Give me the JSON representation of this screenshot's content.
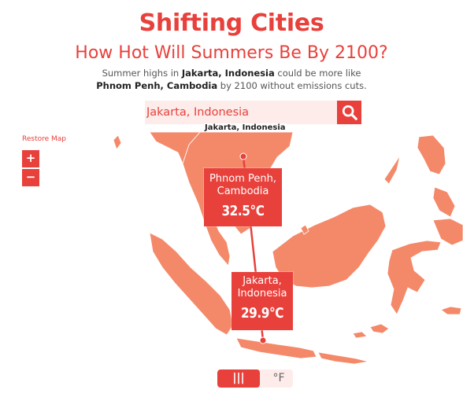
{
  "title": "Shifting Cities",
  "subtitle": "How Hot Will Summers Be By 2100?",
  "description": {
    "part1": "Summer highs in ",
    "city_a": "Jakarta, Indonesia",
    "part2": " could be more like",
    "city_b": "Phnom Penh, Cambodia",
    "part3": " by 2100 without emissions cuts."
  },
  "search": {
    "value": "Jakarta, Indonesia",
    "suggestion": "Jakarta, Indonesia",
    "button_icon": "search-icon"
  },
  "map_controls": {
    "restore_label": "Restore Map",
    "zoom_in_label": "+",
    "zoom_out_label": "−"
  },
  "markers": [
    {
      "city": "Phnom Penh, Cambodia",
      "city_line1": "Phnom Penh,",
      "city_line2": "Cambodia",
      "temp": "32.5°C",
      "role": "analog future city"
    },
    {
      "city": "Jakarta, Indonesia",
      "city_line1": "Jakarta,",
      "city_line2": "Indonesia",
      "temp": "29.9°C",
      "role": "selected city"
    }
  ],
  "units": {
    "celsius_label": "|||",
    "fahrenheit_label": "°F",
    "selected": "celsius"
  },
  "colors": {
    "accent": "#e8403b",
    "land": "#f4896a",
    "light_accent": "#fdecea"
  }
}
